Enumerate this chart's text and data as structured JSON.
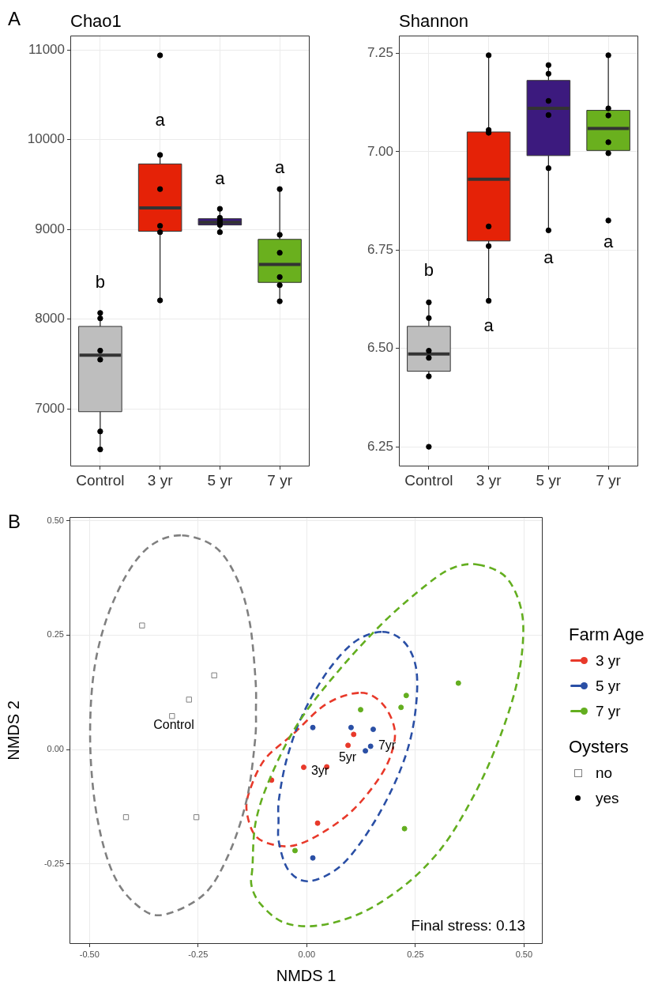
{
  "chart_data": [
    {
      "type": "box",
      "title": "Chao1",
      "categories": [
        "Control",
        "3 yr",
        "5 yr",
        "7 yr"
      ],
      "series": [
        {
          "type": "box",
          "colors": [
            "#bebebe",
            "#e52207",
            "#3c1a7e",
            "#6ab01e"
          ],
          "boxes": [
            {
              "low": 6550,
              "q1": 6970,
              "median": 7600,
              "q3": 7920,
              "high": 8070
            },
            {
              "low": 8210,
              "q1": 8980,
              "median": 9240,
              "q3": 9730,
              "high": 9830
            },
            {
              "low": 8970,
              "q1": 9050,
              "median": 9080,
              "q3": 9120,
              "high": 9230
            },
            {
              "low": 8200,
              "q1": 8410,
              "median": 8610,
              "q3": 8890,
              "high": 9450
            }
          ]
        },
        {
          "type": "scatter",
          "color": "#000000",
          "x": [
            "Control",
            "Control",
            "Control",
            "Control",
            "Control",
            "Control",
            "3 yr",
            "3 yr",
            "3 yr",
            "3 yr",
            "3 yr",
            "3 yr",
            "5 yr",
            "5 yr",
            "5 yr",
            "5 yr",
            "5 yr",
            "5 yr",
            "7 yr",
            "7 yr",
            "7 yr",
            "7 yr",
            "7 yr",
            "7 yr"
          ],
          "values": [
            8070,
            8010,
            7650,
            7550,
            6750,
            6550,
            10940,
            9830,
            9450,
            9040,
            8970,
            8210,
            9230,
            9130,
            9100,
            9070,
            9050,
            8970,
            9450,
            8940,
            8740,
            8470,
            8380,
            8200
          ]
        }
      ],
      "ylim": [
        6360,
        11160
      ],
      "yticks": [
        7000,
        8000,
        9000,
        10000,
        11000
      ],
      "grid": true,
      "annotations": [
        "A",
        "b",
        "a",
        "a",
        "a"
      ]
    },
    {
      "type": "box",
      "title": "Shannon",
      "categories": [
        "Control",
        "3 yr",
        "5 yr",
        "7 yr"
      ],
      "series": [
        {
          "type": "box",
          "colors": [
            "#bebebe",
            "#e52207",
            "#3c1a7e",
            "#6ab01e"
          ],
          "boxes": [
            {
              "low": 6.429,
              "q1": 6.442,
              "median": 6.486,
              "q3": 6.556,
              "high": 6.617
            },
            {
              "low": 6.621,
              "q1": 6.773,
              "median": 6.93,
              "q3": 7.05,
              "high": 7.245
            },
            {
              "low": 6.8,
              "q1": 6.99,
              "median": 7.11,
              "q3": 7.181,
              "high": 7.22
            },
            {
              "low": 6.996,
              "q1": 7.003,
              "median": 7.059,
              "q3": 7.105,
              "high": 7.245
            }
          ]
        },
        {
          "type": "scatter",
          "color": "#000000",
          "x": [
            "Control",
            "Control",
            "Control",
            "Control",
            "Control",
            "Control",
            "3 yr",
            "3 yr",
            "3 yr",
            "3 yr",
            "3 yr",
            "3 yr",
            "5 yr",
            "5 yr",
            "5 yr",
            "5 yr",
            "5 yr",
            "5 yr",
            "7 yr",
            "7 yr",
            "7 yr",
            "7 yr",
            "7 yr",
            "7 yr"
          ],
          "values": [
            6.617,
            6.577,
            6.494,
            6.476,
            6.429,
            6.25,
            7.245,
            7.055,
            7.048,
            6.81,
            6.76,
            6.621,
            7.22,
            7.198,
            7.129,
            7.093,
            6.958,
            6.8,
            7.245,
            7.11,
            7.092,
            7.024,
            6.996,
            6.825
          ]
        }
      ],
      "ylim": [
        6.2,
        7.295
      ],
      "yticks": [
        6.25,
        {
          "value": 6.5,
          "label": "6.50"
        },
        6.75,
        {
          "value": 7,
          "label": "7.00"
        },
        7.25
      ],
      "grid": true,
      "annotations": [
        "b",
        "a",
        "a",
        "a"
      ]
    },
    {
      "type": "scatter",
      "xlabel": "NMDS 1",
      "ylabel": "NMDS 2",
      "legend_title": "Farm Age",
      "legend": "right",
      "grid": true,
      "xlim": [
        -0.546,
        0.543
      ],
      "xticks": [
        {
          "value": -0.5,
          "label": "-0.50"
        },
        -0.25,
        {
          "value": 0,
          "label": "0.00"
        },
        0.25,
        {
          "value": 0.5,
          "label": "0.50"
        }
      ],
      "ylim": [
        -0.425,
        0.508
      ],
      "yticks": [
        -0.25,
        {
          "value": 0,
          "label": "0.00"
        },
        0.25,
        {
          "value": 0.5,
          "label": "0.50"
        }
      ],
      "series": [
        {
          "type": "scatter",
          "name": "3 yr",
          "marker": "circle",
          "color": "#e8392a",
          "x": [
            -0.007,
            0.046,
            -0.081,
            0.025,
            0.095,
            0.108
          ],
          "values": [
            -0.039,
            -0.038,
            -0.067,
            -0.161,
            0.009,
            0.033
          ]
        },
        {
          "type": "scatter",
          "name": "5 yr",
          "marker": "circle",
          "color": "#2a4fa5",
          "x": [
            0.014,
            0.102,
            0.153,
            0.135,
            0.147,
            0.014
          ],
          "values": [
            0.048,
            0.048,
            0.044,
            -0.003,
            0.007,
            -0.237
          ]
        },
        {
          "type": "scatter",
          "name": "7 yr",
          "marker": "circle",
          "color": "#63ae1f",
          "x": [
            0.124,
            0.217,
            0.229,
            0.349,
            0.225,
            -0.027
          ],
          "values": [
            0.087,
            0.092,
            0.118,
            0.145,
            -0.173,
            -0.221
          ]
        },
        {
          "type": "scatter",
          "name": "no",
          "marker": "square",
          "color": "#808080",
          "x": [
            -0.379,
            -0.213,
            -0.271,
            -0.31,
            -0.416,
            -0.254
          ],
          "values": [
            0.271,
            0.162,
            0.109,
            0.073,
            -0.148,
            -0.148
          ]
        }
      ],
      "annotations": [
        "B",
        "Final stress: 0.13",
        "Oysters",
        "yes",
        "Control",
        "3yr",
        "5yr",
        "7yr"
      ]
    }
  ]
}
